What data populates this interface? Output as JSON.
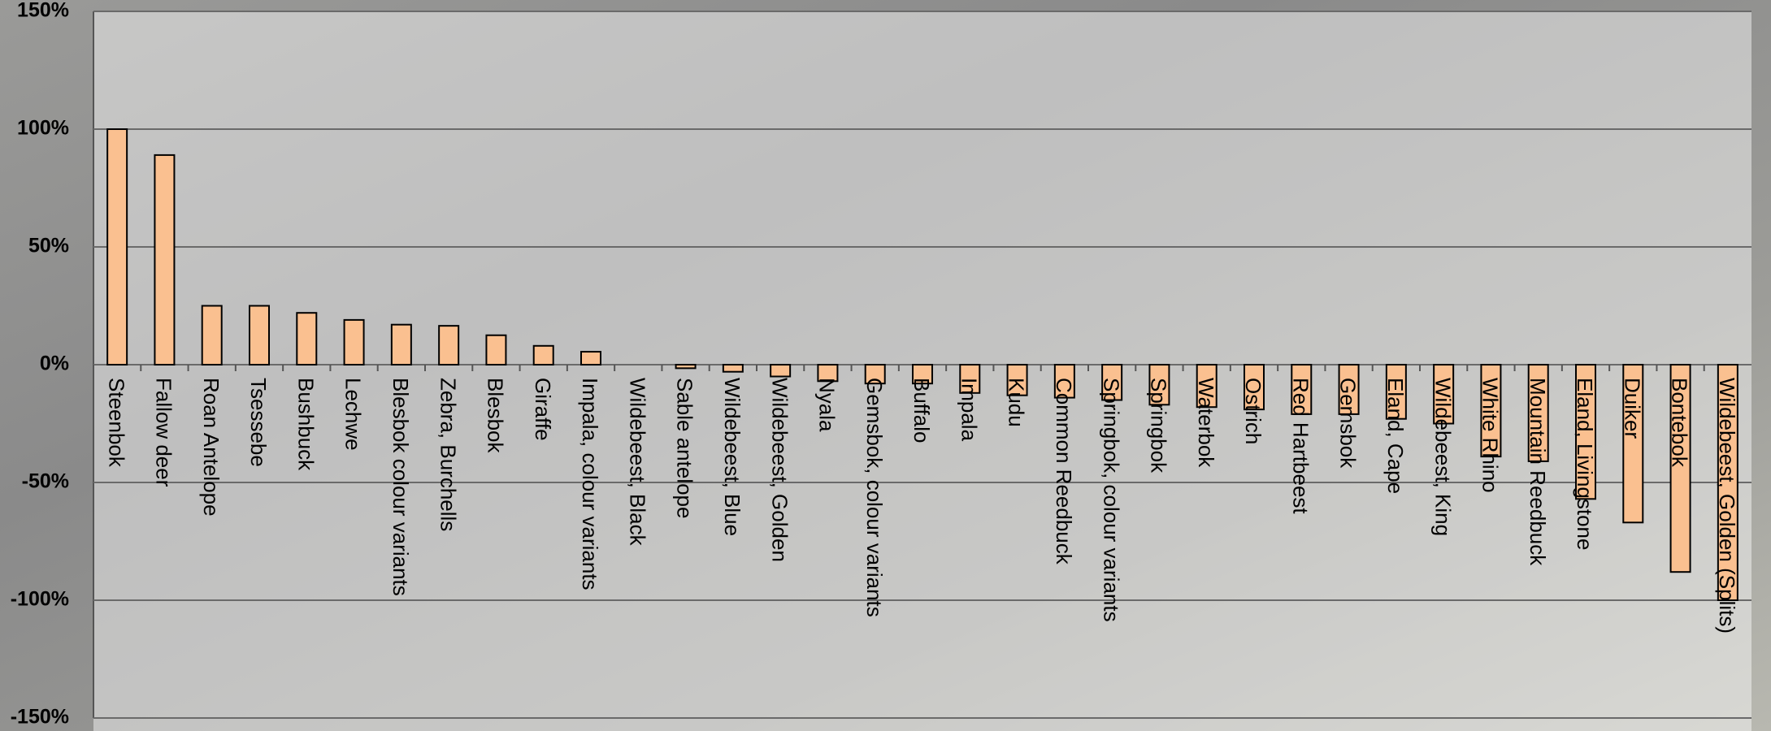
{
  "chart_data": {
    "type": "bar",
    "categories": [
      "Steenbok",
      "Fallow deer",
      "Roan Antelope",
      "Tsessebe",
      "Bushbuck",
      "Lechwe",
      "Blesbok colour variants",
      "Zebra, Burchells",
      "Blesbok",
      "Giraffe",
      "Impala, colour variants",
      "Wildebeest, Black",
      "Sable antelope",
      "Wildebeest, Blue",
      "Wildebeest, Golden",
      "Nyala",
      "Gemsbok, colour variants",
      "Buffalo",
      "Impala",
      "Kudu",
      "Common Reedbuck",
      "Springbok, colour variants",
      "Springbok",
      "Waterbok",
      "Ostrich",
      "Red Hartbeest",
      "Gemsbok",
      "Eland, Cape",
      "Wildebeest, King",
      "White Rhino",
      "Mountain Reedbuck",
      "Eland, Livingstone",
      "Duiker",
      "Bontebok",
      "Wildebeest, Golden (Splits)"
    ],
    "values": [
      100,
      89,
      25,
      25,
      22,
      19,
      17,
      16.5,
      12.5,
      8,
      5.5,
      0,
      -1.5,
      -3,
      -5,
      -7,
      -8,
      -8,
      -12,
      -13,
      -14,
      -15,
      -17,
      -18,
      -19,
      -21,
      -21,
      -23,
      -25,
      -39,
      -41,
      -57,
      -67,
      -88,
      -100
    ],
    "color": "#fac090",
    "ylim": [
      -150,
      150
    ],
    "yticks": [
      {
        "value": -150,
        "label": "-150%"
      },
      {
        "value": -100,
        "label": "-100%"
      },
      {
        "value": -50,
        "label": "-50%"
      },
      {
        "value": 0,
        "label": "0%"
      },
      {
        "value": 50,
        "label": "50%"
      },
      {
        "value": 100,
        "label": "100%"
      },
      {
        "value": 150,
        "label": "150%"
      }
    ],
    "grid": true
  }
}
